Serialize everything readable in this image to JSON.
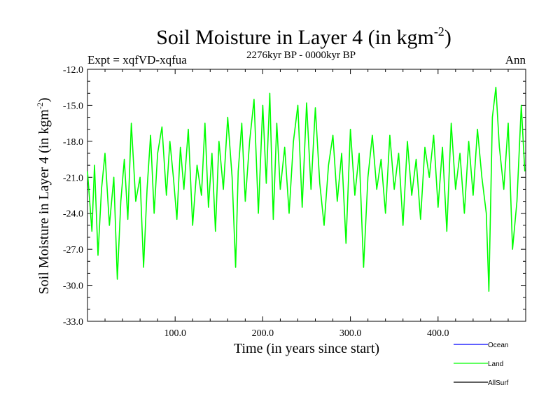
{
  "chart_data": {
    "type": "line",
    "title": "Soil Moisture in Layer 4 (in kgm",
    "title_sup": "-2",
    "title_end": ")",
    "subtitle_left": "Expt = xqfVD-xqfua",
    "subtitle_center": "2276kyr BP - 0000kyr BP",
    "subtitle_right": "Ann",
    "xlabel": "Time (in years since start)",
    "ylabel": "Soil Moisture in Layer 4 (in kgm",
    "ylabel_sup": "-2",
    "ylabel_end": ")",
    "xlim": [
      0,
      500
    ],
    "ylim": [
      -33,
      -12
    ],
    "x_ticks": [
      100,
      200,
      300,
      400
    ],
    "x_tick_labels": [
      "100.0",
      "200.0",
      "300.0",
      "400.0"
    ],
    "y_ticks": [
      -12,
      -15,
      -18,
      -21,
      -24,
      -27,
      -30,
      -33
    ],
    "y_tick_labels": [
      "-12.0",
      "-15.0",
      "-18.0",
      "-21.0",
      "-24.0",
      "-27.0",
      "-30.0",
      "-33.0"
    ],
    "legend_position": "bottom-right",
    "series": [
      {
        "name": "Ocean",
        "color": "#0000ff",
        "x": [],
        "values": []
      },
      {
        "name": "Land",
        "color": "#00ff00",
        "x": [
          0,
          5,
          8,
          12,
          16,
          20,
          25,
          30,
          34,
          38,
          42,
          46,
          50,
          55,
          60,
          64,
          68,
          72,
          76,
          80,
          85,
          90,
          94,
          98,
          102,
          106,
          110,
          115,
          120,
          125,
          130,
          134,
          138,
          142,
          146,
          150,
          155,
          160,
          165,
          169,
          172,
          176,
          180,
          185,
          190,
          195,
          200,
          204,
          208,
          212,
          216,
          220,
          225,
          230,
          235,
          240,
          245,
          250,
          255,
          260,
          265,
          270,
          275,
          280,
          285,
          290,
          295,
          300,
          305,
          310,
          315,
          320,
          325,
          330,
          335,
          340,
          345,
          350,
          355,
          360,
          365,
          370,
          375,
          380,
          385,
          390,
          395,
          400,
          405,
          410,
          415,
          420,
          425,
          430,
          435,
          440,
          445,
          450,
          455,
          458,
          462,
          466,
          470,
          475,
          480,
          485,
          490,
          495,
          499
        ],
        "values": [
          -20.5,
          -25.5,
          -20.0,
          -27.5,
          -22.0,
          -19.0,
          -25.0,
          -21.0,
          -29.5,
          -23.0,
          -19.5,
          -24.5,
          -16.5,
          -23.0,
          -21.0,
          -28.5,
          -22.0,
          -17.5,
          -24.0,
          -19.0,
          -16.8,
          -22.5,
          -18.0,
          -21.0,
          -24.5,
          -18.5,
          -22.0,
          -17.0,
          -25.0,
          -20.0,
          -22.5,
          -16.5,
          -23.5,
          -19.0,
          -25.5,
          -18.0,
          -22.0,
          -16.0,
          -21.0,
          -28.5,
          -20.5,
          -16.5,
          -23.0,
          -18.0,
          -14.5,
          -24.0,
          -15.0,
          -21.5,
          -14.0,
          -24.5,
          -16.5,
          -22.0,
          -18.5,
          -24.0,
          -18.0,
          -15.0,
          -23.5,
          -14.8,
          -22.0,
          -15.2,
          -21.5,
          -25.0,
          -20.0,
          -17.5,
          -23.0,
          -19.0,
          -26.5,
          -17.0,
          -22.5,
          -19.0,
          -28.5,
          -21.0,
          -17.5,
          -22.0,
          -19.5,
          -24.0,
          -17.5,
          -22.0,
          -19.0,
          -25.0,
          -18.0,
          -22.5,
          -19.5,
          -24.5,
          -18.5,
          -21.0,
          -17.5,
          -23.5,
          -18.5,
          -25.5,
          -16.5,
          -22.0,
          -19.0,
          -24.0,
          -18.0,
          -22.5,
          -17.0,
          -21.0,
          -24.0,
          -30.5,
          -16.0,
          -13.5,
          -18.5,
          -22.0,
          -16.5,
          -27.0,
          -23.0,
          -15.0,
          -20.5
        ]
      },
      {
        "name": "AllSurf",
        "color": "#000000",
        "x": [],
        "values": []
      }
    ]
  }
}
